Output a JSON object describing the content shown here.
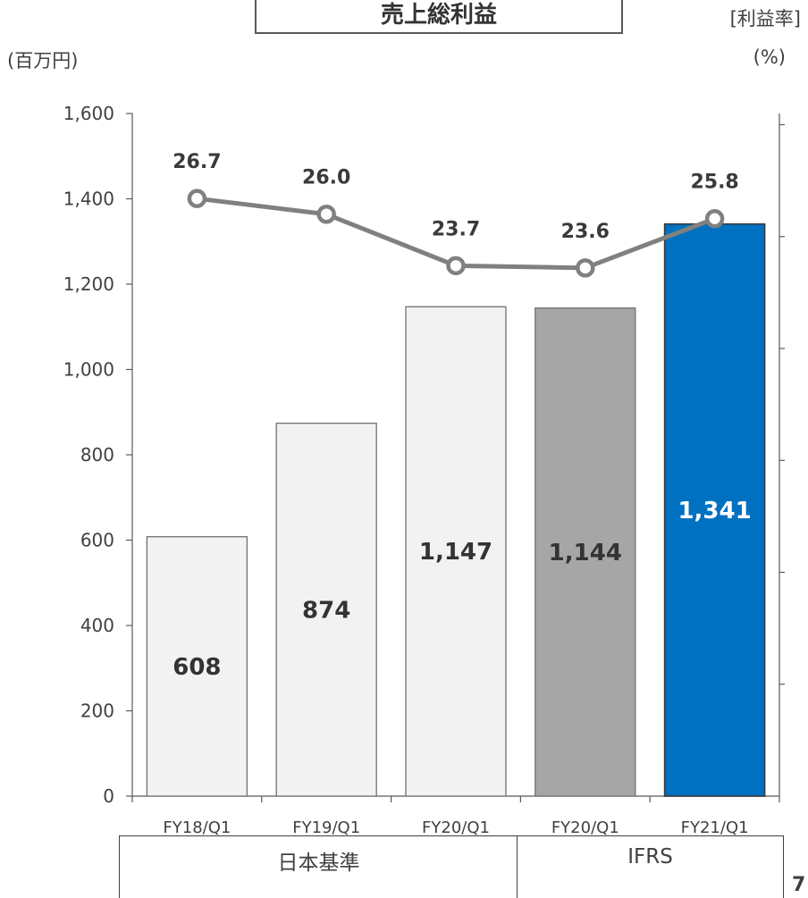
{
  "title": "売上総利益",
  "left_unit": "(百万円)",
  "right_unit_label": "[利益率]",
  "right_unit": "(%)",
  "groups": [
    {
      "label": "日本基準"
    },
    {
      "label": "IFRS"
    }
  ],
  "page_number": "7",
  "colors": {
    "bar_light": "#f2f2f2",
    "bar_gray": "#a6a6a6",
    "bar_blue": "#0070c0",
    "line": "#808080"
  },
  "chart_data": {
    "type": "bar",
    "categories": [
      "FY18/Q1",
      "FY19/Q1",
      "FY20/Q1",
      "FY20/Q1",
      "FY21/Q1"
    ],
    "values": [
      608,
      874,
      1147,
      1144,
      1341
    ],
    "value_labels": [
      "608",
      "874",
      "1,147",
      "1,144",
      "1,341"
    ],
    "bar_colors": [
      "#f2f2f2",
      "#f2f2f2",
      "#f2f2f2",
      "#a6a6a6",
      "#0070c0"
    ],
    "ylim": [
      0,
      1600
    ],
    "yticks": [
      0,
      200,
      400,
      600,
      800,
      1000,
      1200,
      1400,
      1600
    ],
    "ytick_labels": [
      "0",
      "200",
      "400",
      "600",
      "800",
      "1,000",
      "1,200",
      "1,400",
      "1,600"
    ],
    "secondary_series": {
      "type": "line",
      "values": [
        26.7,
        26.0,
        23.7,
        23.6,
        25.8
      ],
      "value_labels": [
        "26.7",
        "26.0",
        "23.7",
        "23.6",
        "25.8"
      ]
    }
  }
}
